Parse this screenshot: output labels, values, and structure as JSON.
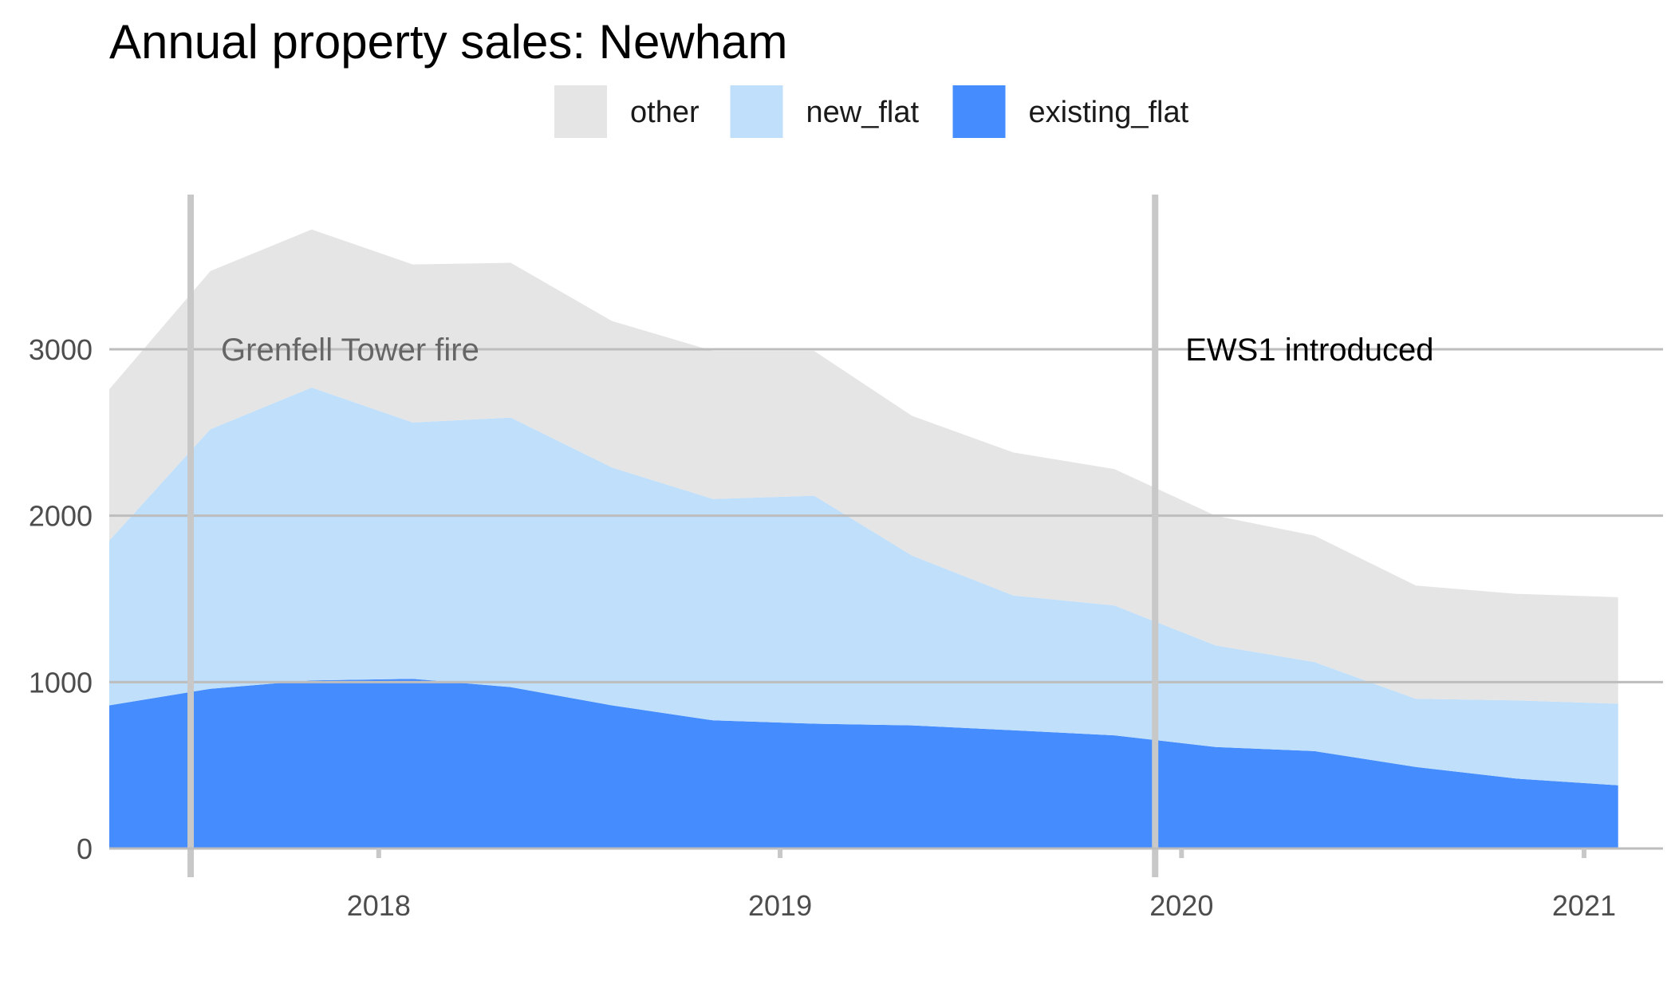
{
  "chart_data": {
    "type": "area",
    "stacked": true,
    "title": "Annual property sales: Newham",
    "xlabel": "",
    "ylabel": "",
    "x": [
      "2017-05-01",
      "2017-08-01",
      "2017-11-01",
      "2018-02-01",
      "2018-05-01",
      "2018-08-01",
      "2018-11-01",
      "2019-02-01",
      "2019-05-01",
      "2019-08-01",
      "2019-11-01",
      "2020-02-01",
      "2020-05-01",
      "2020-08-01",
      "2020-11-01",
      "2021-02-01"
    ],
    "series": [
      {
        "name": "existing_flat",
        "color": "#458cff",
        "values": [
          860,
          960,
          1010,
          1020,
          970,
          860,
          770,
          750,
          740,
          710,
          680,
          610,
          585,
          490,
          420,
          380
        ]
      },
      {
        "name": "new_flat",
        "color": "#bfdffb",
        "values": [
          990,
          1560,
          1760,
          1540,
          1620,
          1430,
          1330,
          1370,
          1020,
          810,
          780,
          610,
          535,
          410,
          470,
          490
        ]
      },
      {
        "name": "other",
        "color": "#e5e5e5",
        "values": [
          910,
          950,
          950,
          950,
          930,
          880,
          890,
          870,
          840,
          860,
          820,
          780,
          760,
          680,
          640,
          640
        ]
      }
    ],
    "legend_order": [
      "other",
      "new_flat",
      "existing_flat"
    ],
    "legend_position": "top",
    "xlim": [
      "2017-05-01",
      "2021-02-15"
    ],
    "ylim": [
      0,
      3900
    ],
    "y_ticks": [
      0,
      1000,
      2000,
      3000
    ],
    "x_ticks": [
      {
        "date": "2018-01-01",
        "label": "2018"
      },
      {
        "date": "2019-01-01",
        "label": "2019"
      },
      {
        "date": "2020-01-01",
        "label": "2020"
      },
      {
        "date": "2021-01-01",
        "label": "2021"
      }
    ],
    "grid": "horizontal",
    "annotations": [
      {
        "date": "2017-07-14",
        "label": "Grenfell Tower fire",
        "color": "#666666"
      },
      {
        "date": "2019-12-08",
        "label": "EWS1 introduced",
        "color": "#000000"
      }
    ]
  }
}
